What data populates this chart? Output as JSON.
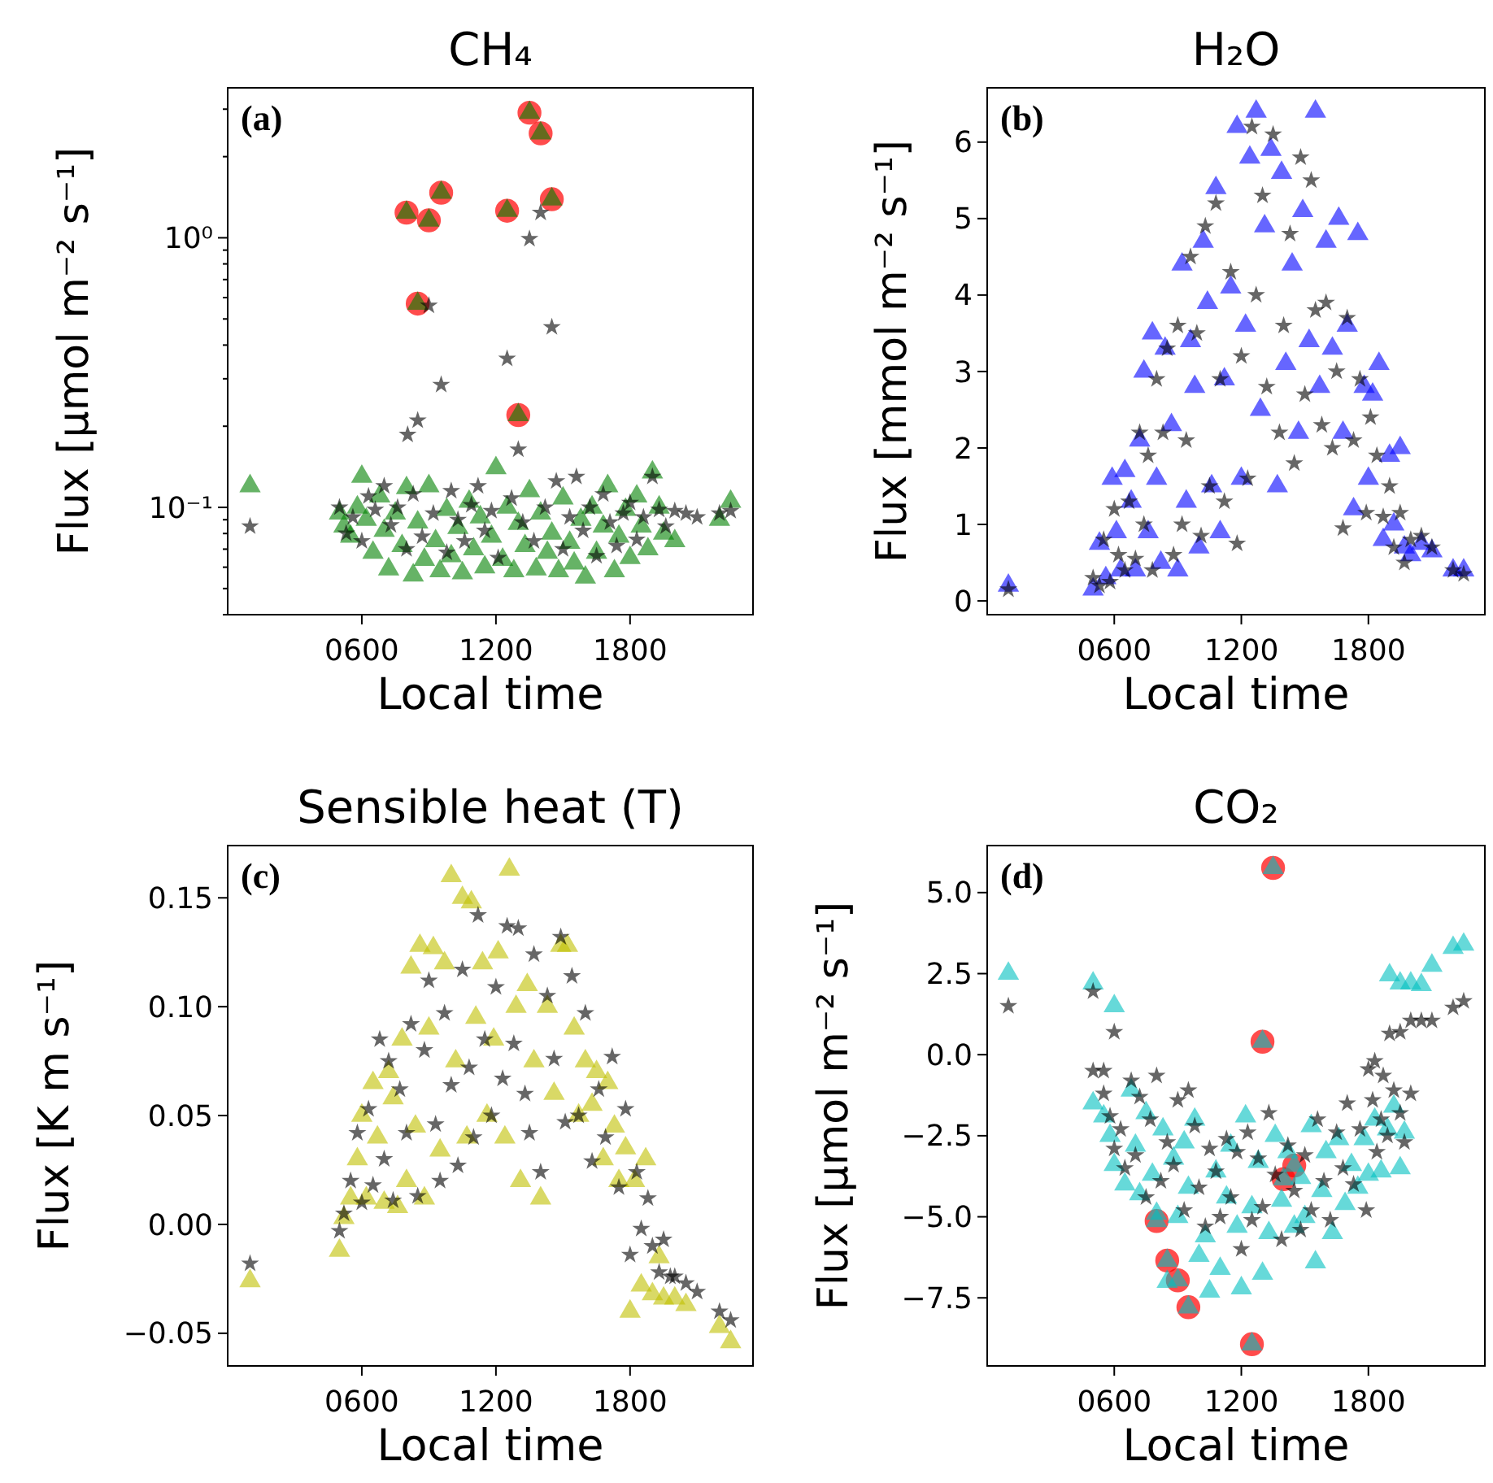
{
  "chart_data": [
    {
      "type": "scatter",
      "title": "CH₄",
      "xlabel": "Local time",
      "ylabel": "Flux [μmol m⁻² s⁻¹]",
      "annotations": [
        "(a)"
      ],
      "log": "y",
      "xlim": [
        0,
        2350
      ],
      "xticks": [
        {
          "value": 600,
          "label": "0600"
        },
        {
          "value": 1200,
          "label": "1200"
        },
        {
          "value": 1800,
          "label": "1800"
        }
      ],
      "ylim": [
        0.04,
        3.6
      ],
      "yticks": [
        {
          "value": 0.04,
          "label": null
        },
        {
          "value": 0.05,
          "label": null
        },
        {
          "value": 0.06,
          "label": null
        },
        {
          "value": 0.07,
          "label": null
        },
        {
          "value": 0.08,
          "label": null
        },
        {
          "value": 0.09,
          "label": null
        },
        {
          "value": 0.1,
          "label": "10⁻¹"
        },
        {
          "value": 0.2,
          "label": null
        },
        {
          "value": 0.3,
          "label": null
        },
        {
          "value": 0.4,
          "label": null
        },
        {
          "value": 0.5,
          "label": null
        },
        {
          "value": 0.6,
          "label": null
        },
        {
          "value": 0.7,
          "label": null
        },
        {
          "value": 0.8,
          "label": null
        },
        {
          "value": 0.9,
          "label": null
        },
        {
          "value": 1,
          "label": "10⁰"
        },
        {
          "value": 2,
          "label": null
        },
        {
          "value": 3,
          "label": null
        }
      ],
      "series": [
        {
          "color": "#ff0000",
          "marker": "circle",
          "x": [
            800,
            850,
            900,
            955,
            1250,
            1300,
            1350,
            1400,
            1450
          ],
          "values": [
            1.24,
            0.57,
            1.16,
            1.47,
            1.26,
            0.22,
            2.91,
            2.44,
            1.39
          ]
        },
        {
          "color": "#008000",
          "marker": "triangle",
          "x": [
            100,
            500,
            520,
            550,
            580,
            600,
            620,
            650,
            680,
            700,
            720,
            750,
            780,
            800,
            830,
            850,
            880,
            900,
            930,
            950,
            980,
            1000,
            1030,
            1050,
            1080,
            1100,
            1130,
            1150,
            1180,
            1200,
            1230,
            1250,
            1280,
            1300,
            1330,
            1350,
            1380,
            1400,
            1430,
            1450,
            1480,
            1500,
            1530,
            1550,
            1580,
            1600,
            1630,
            1650,
            1680,
            1700,
            1730,
            1750,
            1780,
            1800,
            1830,
            1850,
            1880,
            1900,
            1930,
            1950,
            2000,
            2200,
            2250,
            800,
            850,
            900,
            955,
            1250,
            1300,
            1350,
            1400,
            1450
          ],
          "values": [
            0.12,
            0.095,
            0.085,
            0.078,
            0.1,
            0.13,
            0.09,
            0.068,
            0.11,
            0.082,
            0.059,
            0.095,
            0.072,
            0.118,
            0.056,
            0.088,
            0.064,
            0.12,
            0.075,
            0.058,
            0.098,
            0.066,
            0.084,
            0.057,
            0.105,
            0.07,
            0.092,
            0.06,
            0.078,
            0.14,
            0.064,
            0.1,
            0.058,
            0.087,
            0.072,
            0.115,
            0.059,
            0.095,
            0.068,
            0.08,
            0.058,
            0.108,
            0.074,
            0.062,
            0.09,
            0.055,
            0.1,
            0.068,
            0.085,
            0.12,
            0.058,
            0.078,
            0.098,
            0.065,
            0.11,
            0.085,
            0.07,
            0.135,
            0.1,
            0.08,
            0.075,
            0.09,
            0.105,
            1.24,
            0.57,
            1.16,
            1.47,
            1.26,
            0.22,
            2.91,
            2.44,
            1.39
          ]
        },
        {
          "color": "#000000",
          "marker": "star",
          "x": [
            100,
            500,
            530,
            560,
            600,
            630,
            660,
            700,
            730,
            760,
            800,
            805,
            830,
            850,
            870,
            900,
            920,
            955,
            980,
            1000,
            1030,
            1060,
            1090,
            1120,
            1150,
            1180,
            1210,
            1250,
            1270,
            1300,
            1320,
            1350,
            1370,
            1400,
            1420,
            1450,
            1470,
            1500,
            1530,
            1560,
            1590,
            1620,
            1650,
            1680,
            1710,
            1740,
            1770,
            1800,
            1830,
            1860,
            1900,
            1930,
            1960,
            2000,
            2050,
            2100,
            2200,
            2250
          ],
          "values": [
            0.085,
            0.1,
            0.08,
            0.092,
            0.075,
            0.11,
            0.098,
            0.12,
            0.086,
            0.1,
            0.07,
            0.186,
            0.112,
            0.21,
            0.078,
            0.56,
            0.095,
            0.285,
            0.068,
            0.115,
            0.09,
            0.075,
            0.102,
            0.12,
            0.082,
            0.097,
            0.065,
            0.356,
            0.108,
            0.164,
            0.088,
            0.99,
            0.075,
            1.24,
            0.1,
            0.466,
            0.125,
            0.07,
            0.092,
            0.13,
            0.082,
            0.1,
            0.066,
            0.112,
            0.088,
            0.072,
            0.095,
            0.104,
            0.076,
            0.092,
            0.13,
            0.098,
            0.085,
            0.097,
            0.095,
            0.092,
            0.095,
            0.097
          ]
        }
      ]
    },
    {
      "type": "scatter",
      "title": "H₂O",
      "xlabel": "Local time",
      "ylabel": "Flux [mmol m⁻² s⁻¹]",
      "annotations": [
        "(b)"
      ],
      "xlim": [
        0,
        2350
      ],
      "xticks": [
        {
          "value": 600,
          "label": "0600"
        },
        {
          "value": 1200,
          "label": "1200"
        },
        {
          "value": 1800,
          "label": "1800"
        }
      ],
      "ylim": [
        -0.18,
        6.71
      ],
      "yticks": [
        0,
        1,
        2,
        3,
        4,
        5,
        6
      ],
      "series": [
        {
          "color": "#0000ff",
          "marker": "triangle",
          "x": [
            100,
            500,
            530,
            560,
            590,
            610,
            630,
            650,
            680,
            700,
            720,
            740,
            760,
            780,
            800,
            820,
            840,
            870,
            900,
            920,
            940,
            960,
            980,
            1000,
            1020,
            1040,
            1060,
            1080,
            1100,
            1120,
            1150,
            1180,
            1200,
            1220,
            1240,
            1270,
            1290,
            1310,
            1340,
            1370,
            1390,
            1410,
            1440,
            1470,
            1490,
            1520,
            1550,
            1570,
            1600,
            1630,
            1660,
            1680,
            1700,
            1730,
            1750,
            1780,
            1800,
            1820,
            1850,
            1870,
            1900,
            1920,
            1950,
            1970,
            2000,
            2050,
            2100,
            2200,
            2250
          ],
          "values": [
            0.2,
            0.15,
            0.75,
            0.3,
            1.6,
            0.9,
            0.4,
            1.7,
            1.3,
            0.4,
            2.1,
            3.0,
            0.9,
            3.5,
            1.6,
            0.5,
            3.3,
            2.3,
            0.4,
            4.4,
            1.3,
            3.4,
            2.8,
            0.7,
            4.7,
            3.9,
            1.5,
            5.4,
            0.9,
            2.9,
            4.1,
            6.2,
            1.6,
            3.6,
            5.8,
            6.4,
            2.5,
            4.9,
            5.9,
            1.5,
            5.6,
            3.1,
            4.4,
            2.2,
            5.1,
            3.4,
            6.4,
            2.8,
            4.7,
            3.3,
            5.0,
            2.2,
            3.6,
            1.2,
            4.8,
            2.8,
            1.6,
            2.7,
            3.1,
            0.8,
            1.9,
            1.0,
            2.0,
            0.7,
            0.6,
            0.75,
            0.65,
            0.4,
            0.4
          ]
        },
        {
          "color": "#000000",
          "marker": "star",
          "x": [
            100,
            500,
            530,
            550,
            580,
            600,
            620,
            650,
            670,
            700,
            720,
            740,
            760,
            780,
            800,
            830,
            850,
            880,
            900,
            920,
            940,
            960,
            990,
            1010,
            1030,
            1050,
            1080,
            1100,
            1120,
            1150,
            1180,
            1200,
            1230,
            1250,
            1270,
            1300,
            1320,
            1350,
            1380,
            1400,
            1430,
            1450,
            1480,
            1500,
            1530,
            1550,
            1580,
            1600,
            1630,
            1650,
            1680,
            1700,
            1730,
            1760,
            1790,
            1810,
            1840,
            1870,
            1900,
            1920,
            1950,
            1970,
            2000,
            2050,
            2100,
            2200,
            2250
          ],
          "values": [
            0.15,
            0.3,
            0.2,
            0.8,
            0.25,
            1.2,
            0.6,
            0.4,
            1.3,
            0.55,
            2.2,
            1.0,
            1.9,
            0.4,
            2.9,
            2.2,
            3.3,
            0.6,
            3.6,
            1.0,
            2.1,
            4.5,
            3.5,
            0.85,
            4.9,
            1.5,
            5.2,
            2.9,
            1.3,
            4.3,
            0.75,
            3.2,
            1.6,
            6.2,
            4.0,
            5.3,
            2.8,
            6.1,
            2.2,
            3.6,
            4.8,
            1.8,
            5.8,
            2.7,
            5.5,
            3.8,
            2.3,
            3.9,
            2.0,
            3.0,
            0.95,
            3.7,
            2.1,
            2.9,
            1.15,
            2.4,
            1.9,
            1.1,
            1.5,
            0.7,
            1.15,
            0.5,
            0.8,
            0.85,
            0.7,
            0.4,
            0.35
          ]
        }
      ]
    },
    {
      "type": "scatter",
      "title": "Sensible heat (T)",
      "xlabel": "Local time",
      "ylabel": "Flux [K m s⁻¹]",
      "annotations": [
        "(c)"
      ],
      "xlim": [
        0,
        2350
      ],
      "xticks": [
        {
          "value": 600,
          "label": "0600"
        },
        {
          "value": 1200,
          "label": "1200"
        },
        {
          "value": 1800,
          "label": "1800"
        }
      ],
      "ylim": [
        -0.065,
        0.174
      ],
      "yticks": [
        {
          "value": -0.05,
          "label": "−0.05"
        },
        {
          "value": 0,
          "label": "0.00"
        },
        {
          "value": 0.05,
          "label": "0.05"
        },
        {
          "value": 0.1,
          "label": "0.10"
        },
        {
          "value": 0.15,
          "label": "0.15"
        }
      ],
      "series": [
        {
          "color": "#bfbf00",
          "marker": "triangle",
          "x": [
            100,
            500,
            520,
            550,
            580,
            600,
            620,
            650,
            670,
            700,
            720,
            740,
            760,
            780,
            800,
            820,
            840,
            860,
            880,
            900,
            920,
            950,
            970,
            1000,
            1020,
            1050,
            1070,
            1090,
            1110,
            1140,
            1160,
            1190,
            1210,
            1240,
            1260,
            1290,
            1310,
            1340,
            1370,
            1400,
            1430,
            1460,
            1490,
            1520,
            1550,
            1570,
            1600,
            1630,
            1650,
            1680,
            1700,
            1730,
            1750,
            1780,
            1800,
            1820,
            1850,
            1870,
            1900,
            1930,
            1950,
            2000,
            2050,
            2200,
            2250
          ],
          "values": [
            -0.026,
            -0.012,
            0.003,
            0.012,
            0.03,
            0.05,
            0.012,
            0.065,
            0.04,
            0.01,
            0.07,
            0.058,
            0.008,
            0.085,
            0.02,
            0.118,
            0.045,
            0.128,
            0.012,
            0.09,
            0.127,
            0.034,
            0.12,
            0.16,
            0.075,
            0.15,
            0.04,
            0.148,
            0.095,
            0.12,
            0.05,
            0.085,
            0.125,
            0.04,
            0.163,
            0.1,
            0.02,
            0.11,
            0.075,
            0.012,
            0.1,
            0.06,
            0.128,
            0.128,
            0.09,
            0.05,
            0.075,
            0.055,
            0.07,
            0.03,
            0.065,
            0.045,
            0.02,
            0.035,
            -0.04,
            0.02,
            -0.028,
            0.03,
            -0.032,
            -0.015,
            -0.034,
            -0.034,
            -0.037,
            -0.047,
            -0.054
          ]
        },
        {
          "color": "#000000",
          "marker": "star",
          "x": [
            100,
            500,
            520,
            550,
            580,
            600,
            630,
            650,
            680,
            700,
            720,
            740,
            770,
            800,
            820,
            850,
            880,
            900,
            930,
            950,
            970,
            1000,
            1030,
            1050,
            1080,
            1100,
            1120,
            1150,
            1180,
            1200,
            1230,
            1250,
            1280,
            1300,
            1330,
            1350,
            1370,
            1400,
            1430,
            1460,
            1490,
            1510,
            1540,
            1570,
            1600,
            1630,
            1660,
            1690,
            1720,
            1750,
            1780,
            1800,
            1830,
            1850,
            1880,
            1900,
            1930,
            1950,
            1980,
            2000,
            2050,
            2100,
            2200,
            2250
          ],
          "values": [
            -0.018,
            -0.003,
            0.005,
            0.02,
            0.042,
            0.01,
            0.053,
            0.018,
            0.085,
            0.03,
            0.075,
            0.011,
            0.062,
            0.042,
            0.092,
            0.013,
            0.08,
            0.112,
            0.046,
            0.02,
            0.097,
            0.064,
            0.027,
            0.117,
            0.072,
            0.04,
            0.142,
            0.085,
            0.05,
            0.109,
            0.067,
            0.137,
            0.083,
            0.136,
            0.06,
            0.042,
            0.124,
            0.024,
            0.105,
            0.076,
            0.132,
            0.047,
            0.114,
            0.05,
            0.097,
            0.029,
            0.062,
            0.04,
            0.077,
            0.017,
            0.053,
            -0.014,
            0.024,
            -0.002,
            0.012,
            -0.01,
            -0.022,
            -0.007,
            -0.024,
            -0.024,
            -0.027,
            -0.031,
            -0.04,
            -0.044
          ]
        }
      ]
    },
    {
      "type": "scatter",
      "title": "CO₂",
      "xlabel": "Local time",
      "ylabel": "Flux [μmol m⁻² s⁻¹]",
      "annotations": [
        "(d)"
      ],
      "xlim": [
        0,
        2350
      ],
      "xticks": [
        {
          "value": 600,
          "label": "0600"
        },
        {
          "value": 1200,
          "label": "1200"
        },
        {
          "value": 1800,
          "label": "1800"
        }
      ],
      "ylim": [
        -9.6,
        6.45
      ],
      "yticks": [
        {
          "value": -7.5,
          "label": "−7.5"
        },
        {
          "value": -5,
          "label": "−5.0"
        },
        {
          "value": -2.5,
          "label": "−2.5"
        },
        {
          "value": 0,
          "label": "0.0"
        },
        {
          "value": 2.5,
          "label": "2.5"
        },
        {
          "value": 5,
          "label": "5.0"
        }
      ],
      "series": [
        {
          "color": "#ff0000",
          "marker": "circle",
          "x": [
            800,
            850,
            900,
            950,
            1250,
            1300,
            1350,
            1400,
            1450
          ],
          "values": [
            -5.13,
            -6.35,
            -6.96,
            -7.79,
            -8.93,
            0.4,
            5.76,
            -3.84,
            -3.42
          ]
        },
        {
          "color": "#00bfbf",
          "marker": "triangle",
          "x": [
            100,
            500,
            500,
            550,
            600,
            580,
            600,
            650,
            680,
            700,
            720,
            750,
            780,
            800,
            830,
            850,
            880,
            900,
            930,
            950,
            980,
            1000,
            1030,
            1050,
            1080,
            1100,
            1130,
            1150,
            1180,
            1200,
            1220,
            1250,
            1280,
            1300,
            1330,
            1360,
            1390,
            1420,
            1450,
            1480,
            1500,
            1530,
            1550,
            1580,
            1600,
            1630,
            1660,
            1690,
            1720,
            1750,
            1780,
            1800,
            1830,
            1860,
            1890,
            1920,
            1950,
            1970,
            1900,
            1950,
            2000,
            2050,
            2100,
            2200,
            2250,
            800,
            850,
            900,
            950,
            1250,
            1300,
            1350,
            1400,
            1450
          ],
          "values": [
            2.5,
            2.2,
            -1.5,
            -1.9,
            1.5,
            -2.5,
            -3.4,
            -4.0,
            -1.1,
            -2.8,
            -4.3,
            -1.8,
            -3.7,
            -4.9,
            -2.3,
            -7.0,
            -3.2,
            -5.0,
            -2.7,
            -4.1,
            -2.0,
            -6.2,
            -5.6,
            -7.3,
            -3.6,
            -6.6,
            -4.4,
            -2.8,
            -5.3,
            -7.2,
            -1.9,
            -4.7,
            -3.3,
            -6.75,
            -5.5,
            -2.5,
            -4.5,
            -3.0,
            -5.3,
            -3.8,
            -5.0,
            -2.2,
            -6.4,
            -4.2,
            -3.0,
            -5.5,
            -2.6,
            -4.6,
            -3.4,
            -4.1,
            -2.6,
            -3.7,
            -2.0,
            -3.6,
            -2.3,
            -1.6,
            -3.5,
            -2.4,
            2.45,
            2.2,
            2.2,
            2.15,
            2.75,
            3.3,
            3.4,
            -5.13,
            -6.35,
            -6.96,
            -7.79,
            -8.93,
            0.4,
            5.76,
            -3.84,
            -3.42
          ]
        },
        {
          "color": "#000000",
          "marker": "star",
          "x": [
            100,
            500,
            600,
            500,
            550,
            550,
            580,
            600,
            630,
            650,
            680,
            700,
            720,
            750,
            770,
            800,
            820,
            850,
            880,
            900,
            930,
            950,
            980,
            1000,
            1030,
            1050,
            1080,
            1100,
            1130,
            1150,
            1180,
            1200,
            1230,
            1250,
            1280,
            1300,
            1330,
            1360,
            1390,
            1420,
            1450,
            1480,
            1500,
            1530,
            1560,
            1590,
            1620,
            1650,
            1680,
            1700,
            1730,
            1760,
            1790,
            1820,
            1840,
            1860,
            1890,
            1920,
            1950,
            1970,
            1800,
            1830,
            1870,
            2000,
            1900,
            1950,
            2000,
            2050,
            2100,
            2200,
            2250
          ],
          "values": [
            1.5,
            1.95,
            0.7,
            -0.5,
            -0.5,
            -1.2,
            -1.9,
            -2.9,
            -2.3,
            -3.5,
            -0.8,
            -3.1,
            -1.3,
            -4.4,
            -2.0,
            -0.65,
            -3.9,
            -2.7,
            -3.4,
            -1.4,
            -4.8,
            -1.1,
            -2.2,
            -4.1,
            -5.3,
            -2.9,
            -3.6,
            -5.0,
            -2.6,
            -4.4,
            -3.0,
            -6.0,
            -2.4,
            -5.1,
            -3.2,
            -4.7,
            -1.8,
            -3.7,
            -5.7,
            -2.8,
            -4.2,
            -5.4,
            -3.1,
            -4.8,
            -2.0,
            -3.9,
            -5.1,
            -2.4,
            -3.5,
            -1.5,
            -4.0,
            -2.3,
            -4.8,
            -1.4,
            -3.0,
            -2.0,
            -2.5,
            -1.1,
            -1.8,
            -2.7,
            -0.45,
            -0.2,
            -0.65,
            -1.2,
            0.65,
            0.7,
            1.05,
            1.05,
            1.05,
            1.45,
            1.65
          ]
        }
      ]
    }
  ]
}
